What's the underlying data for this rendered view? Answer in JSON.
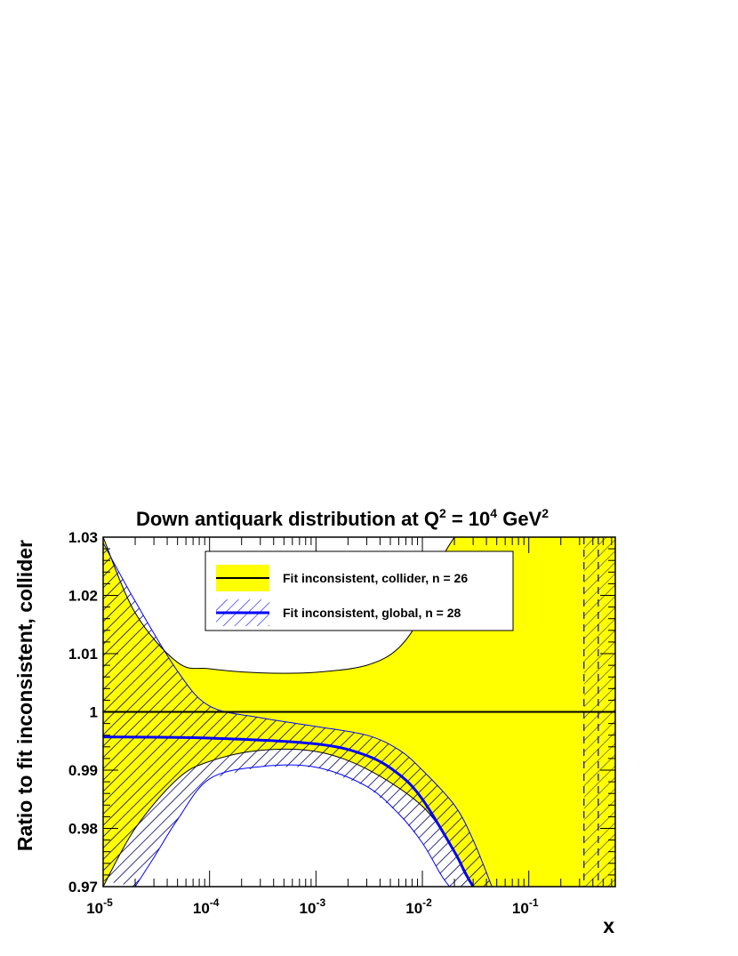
{
  "chart_data": {
    "type": "line",
    "title": "Down antiquark distribution at Q",
    "title_q_exp": "2",
    "title_mid": " = 10",
    "title_mid_exp": "4",
    "title_unit": " GeV",
    "title_unit_exp": "2",
    "xlabel": "x",
    "ylabel": "Ratio to fit inconsistent, collider",
    "x_scale": "log",
    "xlim": [
      1e-05,
      0.65
    ],
    "ylim": [
      0.97,
      1.03
    ],
    "x_ticks": [
      {
        "base": "10",
        "exp": "-5",
        "value": 1e-05
      },
      {
        "base": "10",
        "exp": "-4",
        "value": 0.0001
      },
      {
        "base": "10",
        "exp": "-3",
        "value": 0.001
      },
      {
        "base": "10",
        "exp": "-2",
        "value": 0.01
      },
      {
        "base": "10",
        "exp": "-1",
        "value": 0.1
      }
    ],
    "y_ticks": [
      {
        "label": "0.97",
        "value": 0.97
      },
      {
        "label": "0.98",
        "value": 0.98
      },
      {
        "label": "0.99",
        "value": 0.99
      },
      {
        "label": "1",
        "value": 1.0
      },
      {
        "label": "1.01",
        "value": 1.01
      },
      {
        "label": "1.02",
        "value": 1.02
      },
      {
        "label": "1.03",
        "value": 1.03
      }
    ],
    "legend_placement": "top-center",
    "series": [
      {
        "name": "Fit inconsistent, collider, n = 26",
        "line_color": "#000000",
        "band_color": "#ffff00",
        "band_style": "solid",
        "central": [
          [
            1e-05,
            1.0
          ],
          [
            0.65,
            1.0
          ]
        ],
        "upper": [
          [
            1e-05,
            1.03
          ],
          [
            2e-05,
            1.017
          ],
          [
            5e-05,
            1.0085
          ],
          [
            0.0001,
            1.0074
          ],
          [
            0.0003,
            1.0067
          ],
          [
            0.001,
            1.0068
          ],
          [
            0.003,
            1.008
          ],
          [
            0.006,
            1.011
          ],
          [
            0.01,
            1.017
          ],
          [
            0.015,
            1.026
          ],
          [
            0.02,
            1.03
          ],
          [
            0.65,
            1.03
          ]
        ],
        "lower": [
          [
            1e-05,
            0.97
          ],
          [
            2e-05,
            0.98
          ],
          [
            5e-05,
            0.9885
          ],
          [
            0.0001,
            0.9915
          ],
          [
            0.0003,
            0.9934
          ],
          [
            0.001,
            0.9932
          ],
          [
            0.003,
            0.9902
          ],
          [
            0.01,
            0.9838
          ],
          [
            0.02,
            0.976
          ],
          [
            0.03,
            0.97
          ],
          [
            0.65,
            0.97
          ]
        ]
      },
      {
        "name": "Fit inconsistent, global, n = 28",
        "line_color": "#0000ff",
        "band_color": "#0000ff",
        "band_style": "hatched",
        "central": [
          [
            1e-05,
            0.9957
          ],
          [
            0.0001,
            0.9955
          ],
          [
            0.001,
            0.9945
          ],
          [
            0.003,
            0.9925
          ],
          [
            0.006,
            0.9893
          ],
          [
            0.01,
            0.985
          ],
          [
            0.02,
            0.976
          ],
          [
            0.025,
            0.9725
          ],
          [
            0.03,
            0.97
          ]
        ],
        "upper": [
          [
            1e-05,
            1.029
          ],
          [
            2e-05,
            1.019
          ],
          [
            5e-05,
            1.007
          ],
          [
            0.0001,
            1.001
          ],
          [
            0.0003,
            0.999
          ],
          [
            0.001,
            0.9975
          ],
          [
            0.003,
            0.996
          ],
          [
            0.006,
            0.9935
          ],
          [
            0.01,
            0.99
          ],
          [
            0.02,
            0.984
          ],
          [
            0.03,
            0.978
          ],
          [
            0.045,
            0.97
          ]
        ],
        "lower": [
          [
            1e-05,
            0.971
          ],
          [
            2e-05,
            0.97
          ]
        ],
        "lower_b": [
          [
            2e-05,
            0.97
          ],
          [
            3e-05,
            0.975
          ],
          [
            5e-05,
            0.9815
          ],
          [
            0.0001,
            0.9885
          ],
          [
            0.0003,
            0.9906
          ],
          [
            0.001,
            0.9905
          ],
          [
            0.003,
            0.9872
          ],
          [
            0.006,
            0.9825
          ],
          [
            0.01,
            0.9775
          ],
          [
            0.015,
            0.972
          ],
          [
            0.018,
            0.97
          ]
        ]
      }
    ],
    "high_x_hatch_region": [
      0.33,
      0.65
    ]
  }
}
